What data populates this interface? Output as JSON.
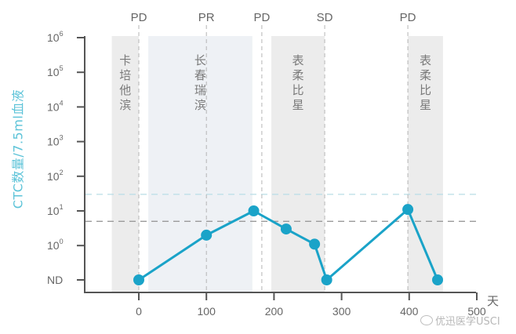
{
  "chart_data": {
    "type": "line",
    "title": "",
    "xlabel": "天",
    "ylabel": "CTC数量/7.5ml血液",
    "x_ticks": [
      "0",
      "100",
      "200",
      "300",
      "400",
      "500"
    ],
    "y_ticks": [
      "ND",
      "10^0",
      "10^1",
      "10^2",
      "10^3",
      "10^4",
      "10^5",
      "10^6"
    ],
    "y_scale": "log (with ND level below 10^0)",
    "xlim": [
      -40,
      500
    ],
    "series": [
      {
        "name": "CTC",
        "color": "#1aa3c8",
        "points": [
          {
            "x": 0,
            "y": "ND"
          },
          {
            "x": 100,
            "y": 2
          },
          {
            "x": 170,
            "y": 10
          },
          {
            "x": 218,
            "y": 3
          },
          {
            "x": 260,
            "y": 1.1
          },
          {
            "x": 278,
            "y": "ND"
          },
          {
            "x": 398,
            "y": 11
          },
          {
            "x": 442,
            "y": "ND"
          }
        ]
      }
    ],
    "response_markers": [
      {
        "x": 0,
        "label": "PD"
      },
      {
        "x": 100,
        "label": "PR"
      },
      {
        "x": 182,
        "label": "PD"
      },
      {
        "x": 275,
        "label": "SD"
      },
      {
        "x": 398,
        "label": "PD"
      }
    ],
    "treatment_bands": [
      {
        "x_start": -40,
        "x_end": 0,
        "label": "卡培他滨",
        "color": "#ececec"
      },
      {
        "x_start": 14,
        "x_end": 168,
        "label": "长春瑞滨",
        "color": "#eef1f5"
      },
      {
        "x_start": 196,
        "x_end": 275,
        "label": "表柔比星",
        "color": "#ececec"
      },
      {
        "x_start": 398,
        "x_end": 450,
        "label": "表柔比星",
        "color": "#ececec"
      }
    ],
    "reference_lines": [
      {
        "y": 30,
        "style": "dashed",
        "color": "#b9dde6"
      },
      {
        "y": 5,
        "style": "dashed",
        "color": "#9a9a9a"
      }
    ],
    "grid": false,
    "legend": "none"
  },
  "watermark": {
    "text": "优迅医学USCI"
  }
}
